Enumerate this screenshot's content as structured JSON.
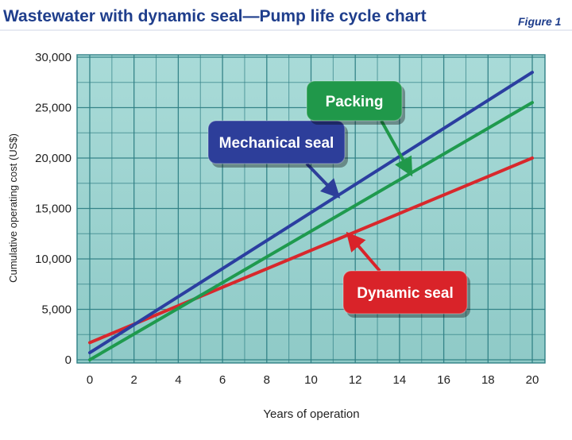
{
  "chart_data": {
    "type": "line",
    "title": "Wastewater with dynamic seal—Pump life cycle chart",
    "figure_label": "Figure 1",
    "xlabel": "Years of operation",
    "ylabel": "Cumulative operating cost (US$)",
    "xlim": [
      0,
      20
    ],
    "ylim": [
      0,
      30000
    ],
    "xticks": [
      0,
      2,
      4,
      6,
      8,
      10,
      12,
      14,
      16,
      18,
      20
    ],
    "xtick_labels": [
      "0",
      "2",
      "4",
      "6",
      "8",
      "10",
      "12",
      "14",
      "16",
      "18",
      "20"
    ],
    "yticks": [
      0,
      5000,
      10000,
      15000,
      20000,
      25000,
      30000
    ],
    "ytick_labels": [
      "0",
      "5,000",
      "10,000",
      "15,000",
      "20,000",
      "25,000",
      "30,000"
    ],
    "grid": true,
    "legend": "callouts",
    "series": [
      {
        "name": "Mechanical seal",
        "color": "#2b3ea0",
        "x": [
          0,
          20
        ],
        "y": [
          700,
          28500
        ],
        "label_color": "#2d3e9a"
      },
      {
        "name": "Packing",
        "color": "#1f9a4e",
        "x": [
          0,
          20
        ],
        "y": [
          0,
          25500
        ],
        "label_color": "#20984a"
      },
      {
        "name": "Dynamic seal",
        "color": "#d8282c",
        "x": [
          0,
          20
        ],
        "y": [
          1700,
          20000
        ],
        "label_color": "#d92329"
      }
    ]
  },
  "colors": {
    "plot_bg": "#9fd3d0",
    "grid": "#2f7f85",
    "title": "#1f3e8c"
  }
}
